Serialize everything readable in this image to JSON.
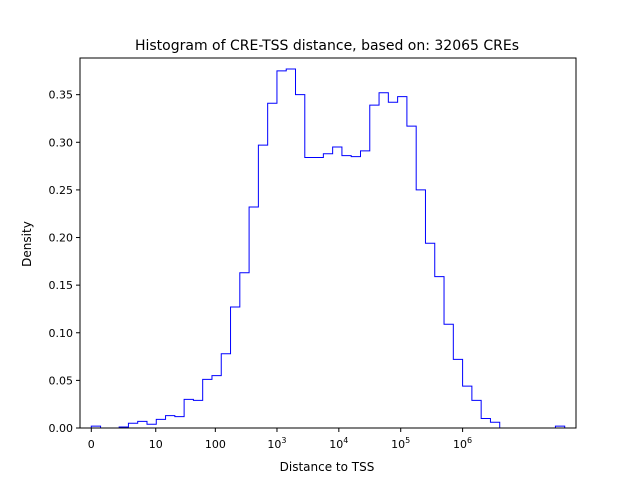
{
  "chart_data": {
    "type": "histogram-step",
    "title": "Histogram of CRE-TSS distance, based on: 32065 CREs",
    "xlabel": "Distance to TSS",
    "ylabel": "Density",
    "line_color": "#0000ff",
    "x_scale": "symlog",
    "xlim": [
      -0.1825,
      7.8325
    ],
    "ylim": [
      0,
      0.3885
    ],
    "grid": false,
    "legend": "none",
    "x_ticks": [
      {
        "value": 0,
        "base": "0",
        "sup": ""
      },
      {
        "value": 10,
        "base": "10",
        "sup": ""
      },
      {
        "value": 100,
        "base": "100",
        "sup": ""
      },
      {
        "value": 1000,
        "base": "10",
        "sup": "3"
      },
      {
        "value": 10000,
        "base": "10",
        "sup": "4"
      },
      {
        "value": 100000,
        "base": "10",
        "sup": "5"
      },
      {
        "value": 1000000,
        "base": "10",
        "sup": "6"
      }
    ],
    "y_ticks": [
      "0.00",
      "0.05",
      "0.10",
      "0.15",
      "0.20",
      "0.25",
      "0.30",
      "0.35"
    ],
    "y_tick_values": [
      0,
      0.05,
      0.1,
      0.15,
      0.2,
      0.25,
      0.3,
      0.35
    ],
    "bin_edges_log10_plus1": [
      0.0,
      0.15,
      0.3,
      0.45,
      0.6,
      0.75,
      0.9,
      1.05,
      1.2,
      1.35,
      1.5,
      1.65,
      1.8,
      1.95,
      2.1,
      2.25,
      2.4,
      2.55,
      2.7,
      2.85,
      3.0,
      3.15,
      3.3,
      3.45,
      3.6,
      3.75,
      3.9,
      4.05,
      4.2,
      4.35,
      4.5,
      4.65,
      4.8,
      4.95,
      5.1,
      5.25,
      5.4,
      5.55,
      5.7,
      5.85,
      6.0,
      6.15,
      6.3,
      6.45,
      6.6,
      6.75,
      6.9,
      7.05,
      7.2,
      7.35,
      7.5,
      7.65
    ],
    "density": [
      0.002,
      0.0,
      0.0,
      0.001,
      0.005,
      0.007,
      0.004,
      0.009,
      0.013,
      0.012,
      0.03,
      0.029,
      0.051,
      0.055,
      0.078,
      0.127,
      0.163,
      0.232,
      0.297,
      0.341,
      0.375,
      0.377,
      0.35,
      0.284,
      0.284,
      0.288,
      0.295,
      0.286,
      0.285,
      0.291,
      0.339,
      0.352,
      0.342,
      0.348,
      0.317,
      0.25,
      0.194,
      0.159,
      0.109,
      0.072,
      0.044,
      0.029,
      0.01,
      0.006,
      0.0,
      0.0,
      0.0,
      0.0,
      0.0,
      0.0,
      0.002
    ]
  }
}
